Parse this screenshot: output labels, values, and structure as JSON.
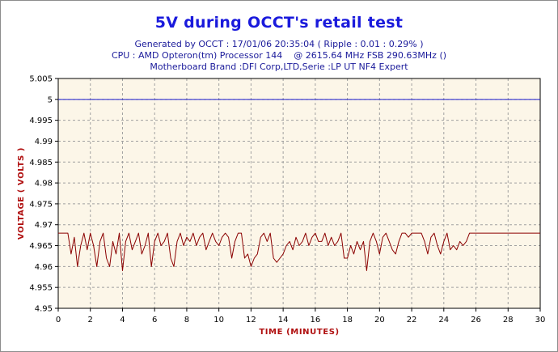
{
  "title": "5V during OCCT's retail test",
  "subtitle_lines": [
    "Generated by OCCT : 17/01/06 20:35:04 ( Ripple : 0.01 : 0.29% )",
    "CPU : AMD Opteron(tm) Processor 144    @ 2615.64 MHz FSB 290.63MHz ()",
    "Motherboard Brand :DFI Corp,LTD,Serie :LP UT NF4 Expert"
  ],
  "colors": {
    "plot_bg": "#fcf6e8",
    "grid": "#a0a0a0",
    "reference_line": "#1a1acc",
    "series": "#8b0000",
    "title": "#1a1adc",
    "axis_title": "#b01010"
  },
  "chart_data": {
    "type": "line",
    "title": "5V during OCCT's retail test",
    "xlabel": "TIME (MINUTES)",
    "ylabel": "VOLTAGE ( VOLTS )",
    "xlim": [
      0,
      30
    ],
    "ylim": [
      4.95,
      5.005
    ],
    "x_ticks": [
      "0",
      "2",
      "4",
      "6",
      "8",
      "10",
      "12",
      "14",
      "16",
      "18",
      "20",
      "22",
      "24",
      "26",
      "28",
      "30"
    ],
    "y_ticks": [
      "5.005",
      "5",
      "4.995",
      "4.99",
      "4.985",
      "4.98",
      "4.975",
      "4.97",
      "4.965",
      "4.96",
      "4.955",
      "4.95"
    ],
    "grid": true,
    "reference_line": {
      "y": 5.0
    },
    "series": [
      {
        "x": [
          0,
          0.6,
          0.8,
          1.0,
          1.2,
          1.4,
          1.6,
          1.8,
          2.0,
          2.2,
          2.4,
          2.6,
          2.8,
          3.0,
          3.2,
          3.4,
          3.6,
          3.8,
          4.0,
          4.2,
          4.4,
          4.6,
          4.8,
          5.0,
          5.2,
          5.4,
          5.6,
          5.8,
          6.0,
          6.2,
          6.4,
          6.6,
          6.8,
          7.0,
          7.2,
          7.4,
          7.6,
          7.8,
          8.0,
          8.2,
          8.4,
          8.6,
          8.8,
          9.0,
          9.2,
          9.4,
          9.6,
          9.8,
          10.0,
          10.2,
          10.4,
          10.6,
          10.8,
          11.0,
          11.2,
          11.4,
          11.6,
          11.8,
          12.0,
          12.2,
          12.4,
          12.6,
          12.8,
          13.0,
          13.2,
          13.4,
          13.6,
          13.8,
          14.0,
          14.2,
          14.4,
          14.6,
          14.8,
          15.0,
          15.2,
          15.4,
          15.6,
          15.8,
          16.0,
          16.2,
          16.4,
          16.6,
          16.8,
          17.0,
          17.2,
          17.4,
          17.6,
          17.8,
          18.0,
          18.2,
          18.4,
          18.6,
          18.8,
          19.0,
          19.2,
          19.4,
          19.6,
          19.8,
          20.0,
          20.2,
          20.4,
          20.6,
          20.8,
          21.0,
          21.2,
          21.4,
          21.6,
          21.8,
          22.0,
          22.2,
          22.4,
          22.6,
          22.8,
          23.0,
          23.2,
          23.4,
          23.6,
          23.8,
          24.0,
          24.2,
          24.4,
          24.6,
          24.8,
          25.0,
          25.2,
          25.4,
          25.6,
          26.0,
          28.0,
          30.0
        ],
        "y": [
          4.968,
          4.968,
          4.963,
          4.967,
          4.96,
          4.965,
          4.968,
          4.964,
          4.968,
          4.965,
          4.96,
          4.966,
          4.968,
          4.962,
          4.96,
          4.966,
          4.963,
          4.968,
          4.959,
          4.966,
          4.968,
          4.964,
          4.966,
          4.968,
          4.963,
          4.965,
          4.968,
          4.96,
          4.966,
          4.968,
          4.965,
          4.966,
          4.968,
          4.962,
          4.96,
          4.966,
          4.968,
          4.965,
          4.967,
          4.966,
          4.968,
          4.965,
          4.967,
          4.968,
          4.964,
          4.966,
          4.968,
          4.966,
          4.965,
          4.967,
          4.968,
          4.967,
          4.962,
          4.966,
          4.968,
          4.968,
          4.962,
          4.963,
          4.96,
          4.962,
          4.963,
          4.967,
          4.968,
          4.966,
          4.968,
          4.962,
          4.961,
          4.962,
          4.963,
          4.965,
          4.966,
          4.964,
          4.967,
          4.965,
          4.966,
          4.968,
          4.965,
          4.967,
          4.968,
          4.966,
          4.966,
          4.968,
          4.965,
          4.967,
          4.965,
          4.966,
          4.968,
          4.962,
          4.962,
          4.965,
          4.963,
          4.966,
          4.964,
          4.966,
          4.959,
          4.966,
          4.968,
          4.966,
          4.963,
          4.967,
          4.968,
          4.966,
          4.964,
          4.963,
          4.966,
          4.968,
          4.968,
          4.967,
          4.968,
          4.968,
          4.968,
          4.968,
          4.966,
          4.963,
          4.967,
          4.968,
          4.965,
          4.963,
          4.966,
          4.968,
          4.964,
          4.965,
          4.964,
          4.966,
          4.965,
          4.966,
          4.968,
          4.968,
          4.968,
          4.968
        ]
      }
    ]
  }
}
